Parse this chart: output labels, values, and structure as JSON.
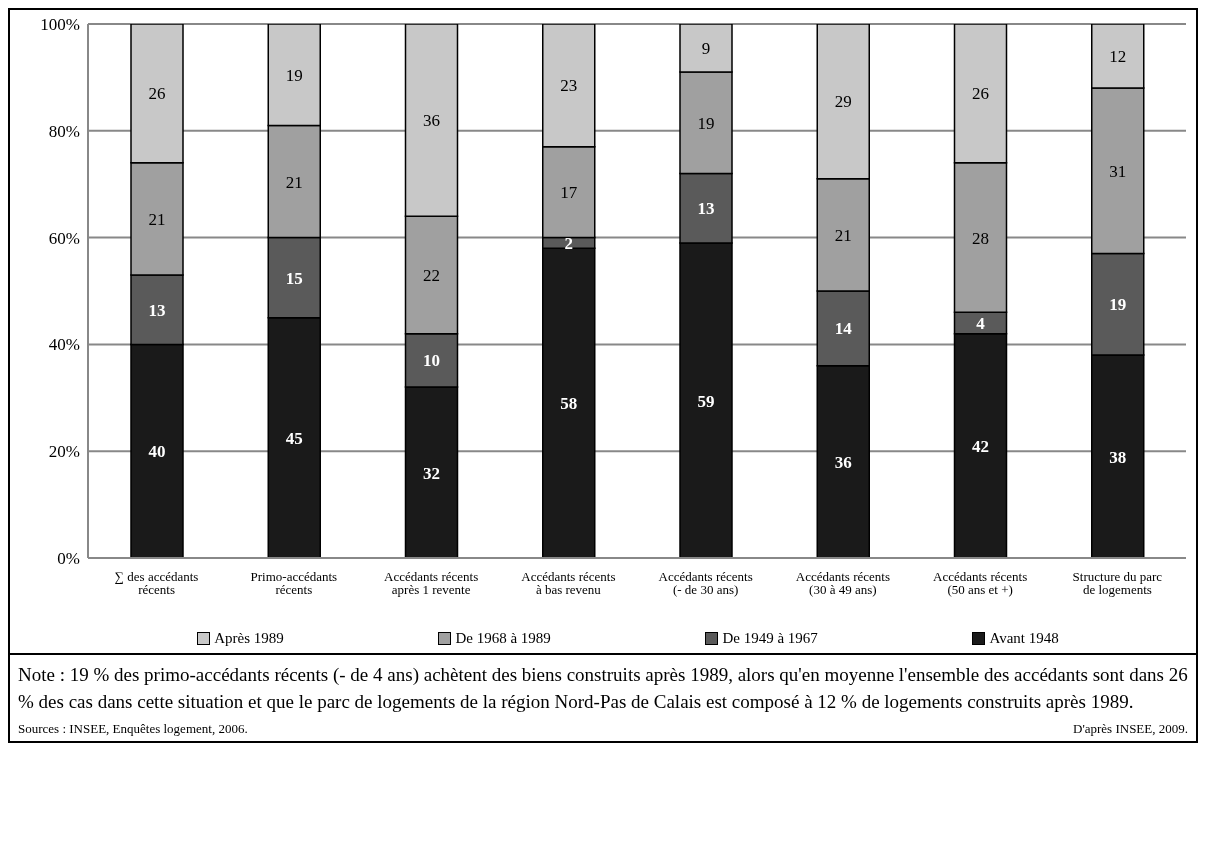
{
  "chart_data": {
    "type": "bar",
    "stacked": true,
    "categories": [
      "∑ des accédants récents",
      "Primo-accédants récents",
      "Accédants récents après 1 revente",
      "Accédants récents à bas revenu",
      "Accédants récents (- de 30 ans)",
      "Accédants récents (30 à 49 ans)",
      "Accédants récents (50 ans et +)",
      "Structure du parc de logements"
    ],
    "series": [
      {
        "name": "Avant 1948",
        "color": "#1a1a1a",
        "values": [
          40,
          45,
          32,
          58,
          59,
          36,
          42,
          38
        ]
      },
      {
        "name": "De 1949 à 1967",
        "color": "#5a5a5a",
        "values": [
          13,
          15,
          10,
          2,
          13,
          14,
          4,
          19
        ]
      },
      {
        "name": "De 1968 à 1989",
        "color": "#a0a0a0",
        "values": [
          21,
          21,
          22,
          17,
          19,
          21,
          28,
          31
        ]
      },
      {
        "name": "Après 1989",
        "color": "#c8c8c8",
        "values": [
          26,
          19,
          36,
          23,
          9,
          29,
          26,
          12
        ]
      }
    ],
    "ylim": [
      0,
      100
    ],
    "yticks": [
      {
        "value": 0,
        "label": "0%"
      },
      {
        "value": 20,
        "label": "20%"
      },
      {
        "value": 40,
        "label": "40%"
      },
      {
        "value": 60,
        "label": "60%"
      },
      {
        "value": 80,
        "label": "80%"
      },
      {
        "value": 100,
        "label": "100%"
      }
    ],
    "grid": "y",
    "legend": "bottom",
    "data_labels": true,
    "annotations": [
      "Note : 19 % des primo-accédants récents (- de 4 ans) achètent des biens construits après 1989, alors qu'en moyenne l'ensemble des accédants sont dans 26 % des cas dans cette situation et que le parc de logements de la région Nord-Pas de Calais est composé à 12 % de logements construits après 1989.",
      "Sources : INSEE, Enquêtes logement, 2006.",
      "D'après INSEE, 2009."
    ]
  }
}
